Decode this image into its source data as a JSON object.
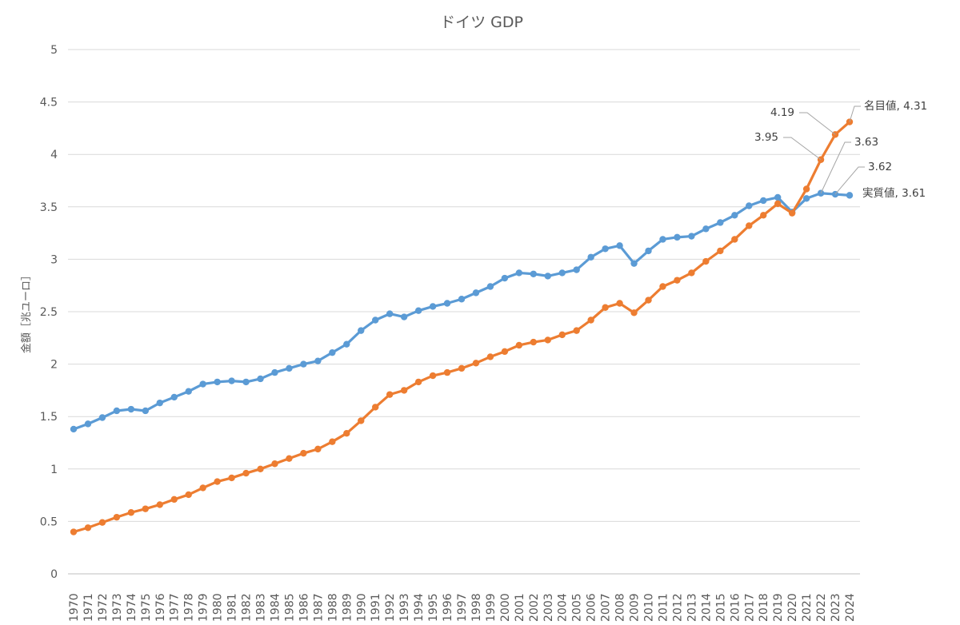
{
  "chart_data": {
    "type": "line",
    "title": "ドイツ GDP",
    "xlabel": "",
    "ylabel": "金額［兆ユーロ］",
    "ylim": [
      0,
      5
    ],
    "yticks": [
      "0",
      "0.5",
      "1",
      "1.5",
      "2",
      "2.5",
      "3",
      "3.5",
      "4",
      "4.5",
      "5"
    ],
    "grid": true,
    "legend": "none",
    "x": [
      1970,
      1971,
      1972,
      1973,
      1974,
      1975,
      1976,
      1977,
      1978,
      1979,
      1980,
      1981,
      1982,
      1983,
      1984,
      1985,
      1986,
      1987,
      1988,
      1989,
      1990,
      1991,
      1992,
      1993,
      1994,
      1995,
      1996,
      1997,
      1998,
      1999,
      2000,
      2001,
      2002,
      2003,
      2004,
      2005,
      2006,
      2007,
      2008,
      2009,
      2010,
      2011,
      2012,
      2013,
      2014,
      2015,
      2016,
      2017,
      2018,
      2019,
      2020,
      2021,
      2022,
      2023,
      2024
    ],
    "series": [
      {
        "name": "実質値",
        "color": "#5b9bd5",
        "values": [
          1.38,
          1.43,
          1.49,
          1.555,
          1.57,
          1.555,
          1.63,
          1.685,
          1.74,
          1.81,
          1.83,
          1.84,
          1.83,
          1.86,
          1.92,
          1.96,
          2.0,
          2.03,
          2.11,
          2.19,
          2.32,
          2.42,
          2.48,
          2.45,
          2.51,
          2.55,
          2.58,
          2.62,
          2.68,
          2.74,
          2.82,
          2.87,
          2.86,
          2.84,
          2.87,
          2.9,
          3.02,
          3.1,
          3.13,
          2.96,
          3.08,
          3.19,
          3.21,
          3.22,
          3.29,
          3.35,
          3.42,
          3.51,
          3.56,
          3.59,
          3.45,
          3.58,
          3.63,
          3.62,
          3.61
        ]
      },
      {
        "name": "名目値",
        "color": "#ed7d31",
        "values": [
          0.4,
          0.44,
          0.49,
          0.54,
          0.585,
          0.62,
          0.66,
          0.71,
          0.755,
          0.82,
          0.88,
          0.915,
          0.96,
          1.0,
          1.05,
          1.1,
          1.15,
          1.19,
          1.26,
          1.34,
          1.46,
          1.59,
          1.71,
          1.75,
          1.83,
          1.89,
          1.92,
          1.96,
          2.01,
          2.07,
          2.12,
          2.18,
          2.21,
          2.23,
          2.28,
          2.32,
          2.42,
          2.54,
          2.58,
          2.49,
          2.61,
          2.74,
          2.8,
          2.87,
          2.98,
          3.08,
          3.19,
          3.32,
          3.42,
          3.53,
          3.44,
          3.67,
          3.95,
          4.19,
          4.31
        ]
      }
    ],
    "data_labels": [
      {
        "series": 1,
        "year": 2024,
        "text": "名目値, 4.31"
      },
      {
        "series": 1,
        "year": 2023,
        "text": "4.19"
      },
      {
        "series": 1,
        "year": 2022,
        "text": "3.95"
      },
      {
        "series": 0,
        "year": 2022,
        "text": "3.63"
      },
      {
        "series": 0,
        "year": 2023,
        "text": "3.62"
      },
      {
        "series": 0,
        "year": 2024,
        "text": "実質値, 3.61"
      }
    ]
  }
}
